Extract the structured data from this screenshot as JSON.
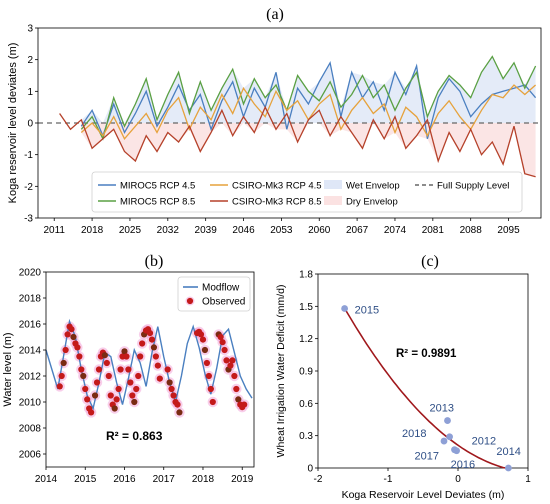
{
  "chart_data": [
    {
      "panel_label": "(a)",
      "type": "line",
      "ylabel": "Koga reservoir level deviates (m)",
      "xlim": [
        2008,
        2101
      ],
      "ylim": [
        -3,
        3
      ],
      "xticks": [
        2011,
        2018,
        2025,
        2032,
        2039,
        2046,
        2053,
        2060,
        2067,
        2074,
        2081,
        2088,
        2095
      ],
      "yticks": [
        -3,
        -2,
        -1,
        0,
        1,
        2,
        3
      ],
      "grid": false,
      "legend_position": "lower-center inside",
      "reference_line": {
        "name": "Full Supply Level",
        "y": 0
      },
      "series": [
        {
          "name": "MIROC5 RCP 4.5",
          "color": "#4a7fc0",
          "x": [
            2016,
            2018,
            2020,
            2022,
            2024,
            2026,
            2028,
            2030,
            2032,
            2034,
            2036,
            2038,
            2040,
            2042,
            2044,
            2046,
            2048,
            2050,
            2052,
            2054,
            2056,
            2058,
            2060,
            2062,
            2064,
            2066,
            2068,
            2070,
            2072,
            2074,
            2076,
            2078,
            2080,
            2082,
            2084,
            2086,
            2088,
            2090,
            2092,
            2094,
            2096,
            2098,
            2100
          ],
          "y": [
            -0.1,
            0.4,
            -0.4,
            0.6,
            -0.3,
            0.3,
            1.0,
            -0.1,
            0.5,
            1.2,
            0.4,
            0.9,
            -0.2,
            0.7,
            1.3,
            0.2,
            1.1,
            0.5,
            1.6,
            -0.2,
            1.1,
            0.6,
            1.3,
            1.9,
            0.2,
            1.6,
            0.8,
            1.3,
            0.4,
            1.6,
            0.9,
            1.8,
            -0.5,
            0.8,
            1.4,
            1.0,
            0.2,
            0.6,
            0.9,
            1.0,
            1.1,
            1.2,
            0.8
          ]
        },
        {
          "name": "MIROC5 RCP 8.5",
          "color": "#5aa043",
          "x": [
            2016,
            2018,
            2020,
            2022,
            2024,
            2026,
            2028,
            2030,
            2032,
            2034,
            2036,
            2038,
            2040,
            2042,
            2044,
            2046,
            2048,
            2050,
            2052,
            2054,
            2056,
            2058,
            2060,
            2062,
            2064,
            2066,
            2068,
            2070,
            2072,
            2074,
            2076,
            2078,
            2080,
            2082,
            2084,
            2086,
            2088,
            2090,
            2092,
            2094,
            2096,
            2098,
            2100
          ],
          "y": [
            -0.2,
            0.2,
            -0.5,
            0.8,
            -0.1,
            0.6,
            1.4,
            0.1,
            0.9,
            1.6,
            0.3,
            1.3,
            0.4,
            1.1,
            1.7,
            0.6,
            1.4,
            0.8,
            1.2,
            0.4,
            1.5,
            1.0,
            0.7,
            1.3,
            0.5,
            0.9,
            1.5,
            0.8,
            1.2,
            0.4,
            1.1,
            1.6,
            0.2,
            1.0,
            1.5,
            1.2,
            0.8,
            1.6,
            2.1,
            1.4,
            1.9,
            1.1,
            1.8
          ]
        },
        {
          "name": "CSIRO-Mk3 RCP 4.5",
          "color": "#e6a23c",
          "x": [
            2016,
            2018,
            2020,
            2022,
            2024,
            2026,
            2028,
            2030,
            2032,
            2034,
            2036,
            2038,
            2040,
            2042,
            2044,
            2046,
            2048,
            2050,
            2052,
            2054,
            2056,
            2058,
            2060,
            2062,
            2064,
            2066,
            2068,
            2070,
            2072,
            2074,
            2076,
            2078,
            2080,
            2082,
            2084,
            2086,
            2088,
            2090,
            2092,
            2094,
            2096,
            2098,
            2100
          ],
          "y": [
            -0.3,
            0.0,
            -0.4,
            0.2,
            -0.5,
            -0.1,
            0.3,
            -0.3,
            0.4,
            0.8,
            -0.2,
            0.5,
            0.1,
            0.9,
            0.3,
            1.1,
            0.6,
            0.2,
            1.0,
            0.4,
            0.7,
            0.1,
            0.6,
            0.9,
            -0.2,
            0.4,
            0.8,
            0.3,
            0.6,
            -0.3,
            0.5,
            0.2,
            -0.4,
            0.3,
            0.7,
            0.2,
            -0.2,
            0.4,
            0.9,
            0.8,
            1.2,
            0.9,
            1.2
          ]
        },
        {
          "name": "CSIRO-Mk3 RCP 8.5",
          "color": "#b5412a",
          "x": [
            2012,
            2014,
            2016,
            2018,
            2020,
            2022,
            2024,
            2026,
            2028,
            2030,
            2032,
            2034,
            2036,
            2038,
            2040,
            2042,
            2044,
            2046,
            2048,
            2050,
            2052,
            2054,
            2056,
            2058,
            2060,
            2062,
            2064,
            2066,
            2068,
            2070,
            2072,
            2074,
            2076,
            2078,
            2080,
            2082,
            2084,
            2086,
            2088,
            2090,
            2092,
            2094,
            2096,
            2098,
            2100
          ],
          "y": [
            0.3,
            -0.2,
            0.1,
            -0.8,
            -0.5,
            -0.2,
            -0.9,
            -1.2,
            -0.4,
            -0.9,
            -0.3,
            -0.6,
            -0.1,
            -0.9,
            -0.3,
            0.4,
            -0.4,
            0.2,
            -0.3,
            0.5,
            -0.2,
            0.3,
            -0.6,
            0.1,
            0.4,
            -0.4,
            0.2,
            -0.3,
            -0.8,
            0.1,
            -0.5,
            0.2,
            -0.8,
            -0.4,
            0.1,
            -1.2,
            -0.3,
            -0.9,
            -0.2,
            -1.0,
            -0.6,
            -1.3,
            -0.1,
            -1.6,
            -1.7
          ]
        }
      ],
      "bands": [
        {
          "name": "Wet Envelop",
          "color": "#dfe7f7"
        },
        {
          "name": "Dry Envelop",
          "color": "#fbe2e2"
        }
      ]
    },
    {
      "panel_label": "(b)",
      "type": "line",
      "ylabel": "Water level (m)",
      "xlim": [
        2014,
        2019.3
      ],
      "ylim": [
        2005,
        2020
      ],
      "xticks": [
        2014,
        2015,
        2016,
        2017,
        2018,
        2019
      ],
      "yticks": [
        2006,
        2008,
        2010,
        2012,
        2014,
        2016,
        2018,
        2020
      ],
      "grid": false,
      "legend_position": "top-right",
      "annotation": "R² = 0.863",
      "series": [
        {
          "name": "Modflow",
          "color": "#4a7fc0",
          "kind": "line",
          "x": [
            2014.0,
            2014.15,
            2014.3,
            2014.45,
            2014.6,
            2014.75,
            2014.9,
            2015.05,
            2015.2,
            2015.35,
            2015.5,
            2015.65,
            2015.8,
            2015.95,
            2016.1,
            2016.25,
            2016.4,
            2016.55,
            2016.7,
            2016.85,
            2017.0,
            2017.15,
            2017.3,
            2017.45,
            2017.6,
            2017.75,
            2017.9,
            2018.05,
            2018.2,
            2018.35,
            2018.5,
            2018.65,
            2018.8,
            2018.95,
            2019.1,
            2019.25
          ],
          "y": [
            2014.0,
            2012.5,
            2011.0,
            2013.6,
            2016.2,
            2015.0,
            2012.5,
            2010.5,
            2009.5,
            2011.5,
            2013.8,
            2013.5,
            2011.5,
            2009.8,
            2011.8,
            2014.0,
            2013.0,
            2011.2,
            2013.8,
            2015.8,
            2013.5,
            2011.5,
            2010.0,
            2012.0,
            2014.5,
            2015.8,
            2014.2,
            2012.2,
            2010.6,
            2012.6,
            2015.1,
            2015.6,
            2013.8,
            2012.0,
            2011.0,
            2010.3
          ]
        },
        {
          "name": "Observed",
          "color": "#c41a1a",
          "kind": "scatter",
          "x": [
            2014.35,
            2014.4,
            2014.45,
            2014.5,
            2014.55,
            2014.6,
            2014.65,
            2014.7,
            2014.75,
            2014.8,
            2014.85,
            2014.9,
            2014.95,
            2015.0,
            2015.05,
            2015.1,
            2015.15,
            2015.25,
            2015.3,
            2015.35,
            2015.4,
            2015.45,
            2015.5,
            2015.55,
            2015.6,
            2015.65,
            2015.7,
            2015.75,
            2015.8,
            2015.85,
            2015.9,
            2015.95,
            2016.0,
            2016.05,
            2016.1,
            2016.15,
            2016.2,
            2016.25,
            2016.3,
            2016.35,
            2016.4,
            2016.45,
            2016.5,
            2016.55,
            2016.6,
            2016.65,
            2016.7,
            2016.75,
            2016.8,
            2016.85,
            2016.9,
            2017.1,
            2017.15,
            2017.2,
            2017.25,
            2017.3,
            2017.35,
            2017.4,
            2017.85,
            2017.9,
            2017.95,
            2018.0,
            2018.05,
            2018.1,
            2018.15,
            2018.2,
            2018.25,
            2018.4,
            2018.45,
            2018.5,
            2018.55,
            2018.6,
            2018.65,
            2018.7,
            2018.75,
            2018.8,
            2018.85,
            2018.9,
            2018.95,
            2019.0,
            2019.05
          ],
          "y": [
            2011.2,
            2012.0,
            2013.0,
            2014.0,
            2015.2,
            2015.8,
            2015.6,
            2015.0,
            2014.5,
            2014.2,
            2013.5,
            2012.5,
            2012.0,
            2011.0,
            2010.2,
            2009.5,
            2009.2,
            2010.5,
            2011.5,
            2012.5,
            2013.5,
            2013.8,
            2013.6,
            2013.0,
            2012.0,
            2010.5,
            2009.8,
            2009.5,
            2010.2,
            2011.0,
            2012.5,
            2013.5,
            2013.9,
            2013.5,
            2012.5,
            2011.5,
            2010.5,
            2010.0,
            2011.0,
            2012.0,
            2013.5,
            2014.5,
            2015.2,
            2015.5,
            2015.6,
            2015.3,
            2014.8,
            2014.2,
            2013.5,
            2012.8,
            2011.8,
            2012.5,
            2011.5,
            2011.0,
            2010.5,
            2010.0,
            2009.8,
            2009.2,
            2015.3,
            2015.4,
            2015.2,
            2014.8,
            2014.0,
            2013.0,
            2012.0,
            2011.0,
            2010.0,
            2015.2,
            2015.0,
            2014.6,
            2014.0,
            2013.2,
            2012.5,
            2012.8,
            2013.2,
            2012.0,
            2011.0,
            2010.2,
            2009.8,
            2009.6,
            2009.8
          ]
        }
      ]
    },
    {
      "panel_label": "(c)",
      "type": "scatter",
      "xlabel": "Koga Reservoir Level Deviates (m)",
      "ylabel": "Wheat Irrigation Water Deficit (mm/d)",
      "xlim": [
        -2,
        1
      ],
      "ylim": [
        0,
        1.8
      ],
      "xticks": [
        -2,
        -1,
        0,
        1
      ],
      "yticks": [
        0,
        0.3,
        0.6,
        0.9,
        1.2,
        1.5,
        1.8
      ],
      "grid": false,
      "annotation": "R² = 0.9891",
      "points": [
        {
          "label": "2015",
          "x": -1.62,
          "y": 1.48
        },
        {
          "label": "2013",
          "x": -0.15,
          "y": 0.44
        },
        {
          "label": "2012",
          "x": -0.12,
          "y": 0.29
        },
        {
          "label": "2018",
          "x": -0.2,
          "y": 0.25
        },
        {
          "label": "2017",
          "x": -0.05,
          "y": 0.17
        },
        {
          "label": "2016",
          "x": -0.02,
          "y": 0.16
        },
        {
          "label": "2014",
          "x": 0.72,
          "y": 0.0
        }
      ],
      "trend_color": "#a0181c",
      "point_color": "#8ea0d6"
    }
  ]
}
